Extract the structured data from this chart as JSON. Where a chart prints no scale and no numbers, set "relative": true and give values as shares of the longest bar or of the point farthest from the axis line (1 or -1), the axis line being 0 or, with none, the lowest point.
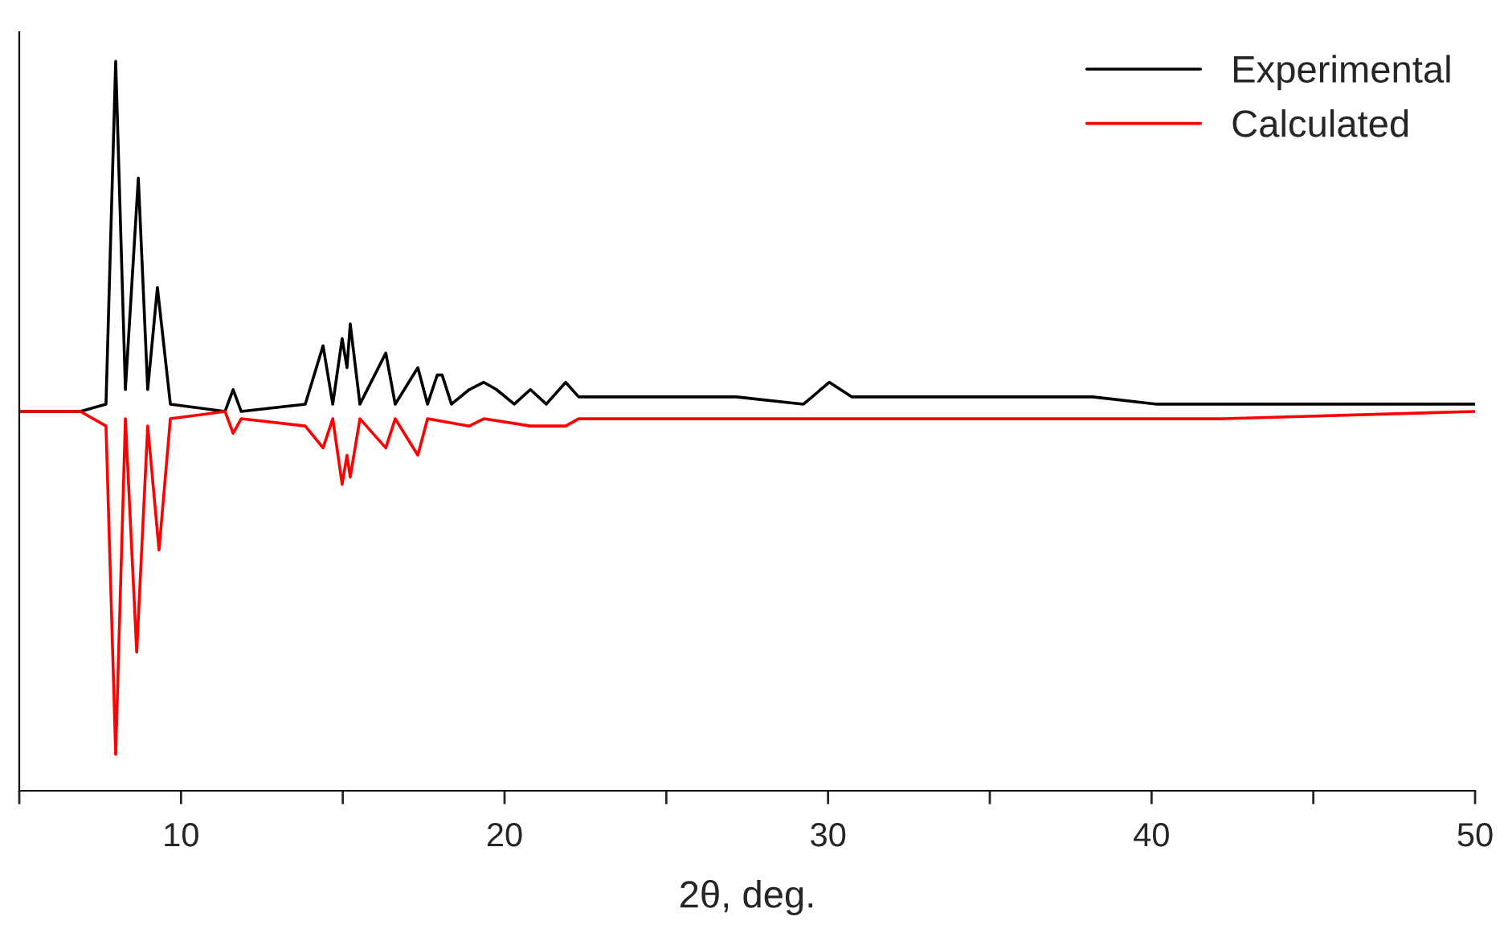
{
  "chart_data": {
    "type": "line",
    "xlabel": "2θ, deg.",
    "relative": true,
    "xlim": [
      5,
      50
    ],
    "xticks": [
      {
        "value": 5,
        "label": null
      },
      10,
      {
        "value": 15,
        "label": null
      },
      20,
      {
        "value": 25,
        "label": null
      },
      30,
      {
        "value": 35,
        "label": null
      },
      40,
      {
        "value": 45,
        "label": null
      },
      50
    ],
    "tick_labels": "x",
    "legend": "top right",
    "grid": false,
    "marker": "none",
    "line_style": "solid",
    "series": [
      {
        "name": "Experimental",
        "color": "#000000",
        "x": [
          5.0,
          6.89,
          7.68,
          7.98,
          8.28,
          8.68,
          8.97,
          9.27,
          9.67,
          11.36,
          11.61,
          11.86,
          13.84,
          14.39,
          14.69,
          14.98,
          15.13,
          15.23,
          15.53,
          16.33,
          16.62,
          17.32,
          17.62,
          17.92,
          18.07,
          18.36,
          18.91,
          19.36,
          19.75,
          20.3,
          20.8,
          21.29,
          21.89,
          22.29,
          24.27,
          26.06,
          27.16,
          29.24,
          30.04,
          30.73,
          32.02,
          34.21,
          36.79,
          38.18,
          40.17,
          42.16,
          44.15,
          47.42,
          50.0
        ],
        "values": [
          0.52,
          0.52,
          0.53,
          1.0,
          0.55,
          0.84,
          0.55,
          0.69,
          0.53,
          0.52,
          0.55,
          0.52,
          0.53,
          0.61,
          0.53,
          0.62,
          0.58,
          0.64,
          0.53,
          0.6,
          0.53,
          0.58,
          0.53,
          0.57,
          0.57,
          0.53,
          0.55,
          0.56,
          0.55,
          0.53,
          0.55,
          0.53,
          0.56,
          0.54,
          0.54,
          0.54,
          0.54,
          0.53,
          0.56,
          0.54,
          0.54,
          0.54,
          0.54,
          0.54,
          0.53,
          0.53,
          0.53,
          0.53,
          0.53
        ]
      },
      {
        "name": "Calculated",
        "color": "#ff0000",
        "x": [
          5.0,
          6.89,
          7.68,
          7.98,
          8.28,
          8.63,
          8.97,
          9.32,
          9.67,
          11.36,
          11.61,
          11.86,
          13.84,
          14.39,
          14.69,
          14.98,
          15.13,
          15.23,
          15.53,
          16.33,
          16.62,
          17.32,
          17.62,
          18.91,
          19.36,
          20.8,
          21.89,
          22.29,
          24.27,
          30.04,
          38.18,
          42.16,
          50.0
        ],
        "values": [
          0.52,
          0.52,
          0.5,
          0.05,
          0.51,
          0.19,
          0.5,
          0.33,
          0.51,
          0.52,
          0.49,
          0.51,
          0.5,
          0.47,
          0.51,
          0.42,
          0.46,
          0.43,
          0.51,
          0.47,
          0.51,
          0.46,
          0.51,
          0.5,
          0.51,
          0.5,
          0.5,
          0.51,
          0.51,
          0.51,
          0.51,
          0.51,
          0.52
        ]
      }
    ]
  }
}
